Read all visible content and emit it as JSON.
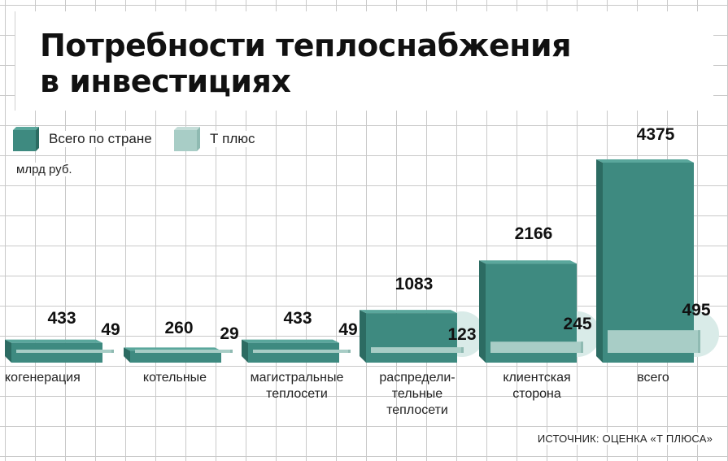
{
  "title_line1": "Потребности теплоснабжения",
  "title_line2": "в инвестициях",
  "unit": "млрд руб.",
  "source": "ИСТОЧНИК: ОЦЕНКА «Т ПЛЮСА»",
  "colors": {
    "total": "#3e8a80",
    "total_top": "#5aa79c",
    "total_side": "#2c6b62",
    "tplus": "#a8cdc6",
    "tplus_side": "#8fbab2",
    "circle": "#d9ebe8"
  },
  "legend": {
    "total_label": "Всего по стране",
    "tplus_label": "Т плюс"
  },
  "chart_data": {
    "type": "bar",
    "categories": [
      "когенерация",
      "котельные",
      "магистральные\nтеплосети",
      "распредели-\nтельные\nтеплосети",
      "клиентская\nсторона",
      "всего"
    ],
    "series": [
      {
        "name": "Всего по стране",
        "values": [
          433,
          260,
          433,
          1083,
          2166,
          4375
        ]
      },
      {
        "name": "Т плюс",
        "values": [
          49,
          29,
          49,
          123,
          245,
          495
        ]
      }
    ],
    "value_labels": {
      "total": [
        "433",
        "260",
        "433",
        "1083",
        "2166",
        "4375"
      ],
      "tplus": [
        "49",
        "29",
        "49",
        "123",
        "245",
        "495"
      ]
    },
    "ylabel": "млрд руб.",
    "grid": true,
    "legend_position": "top-left"
  }
}
